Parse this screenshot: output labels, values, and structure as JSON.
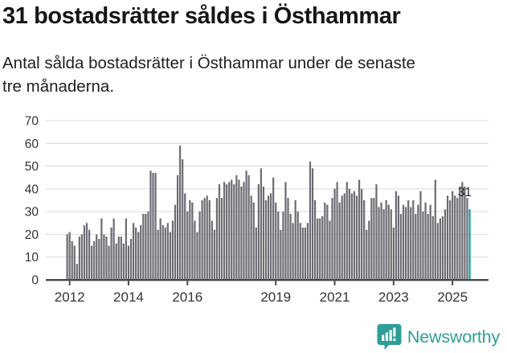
{
  "header": {
    "title": "31 bostadsrätter såldes i Östhammar",
    "subtitle_lines": [
      "Antal sålda bostadsrätter i Östhammar under de senaste",
      "tre månaderna."
    ]
  },
  "chart_data": {
    "type": "bar",
    "title": "31 bostadsrätter såldes i Östhammar",
    "subtitle": "Antal sålda bostadsrätter i Östhammar under de senaste tre månaderna.",
    "frequency": "monthly",
    "x_start": "2011-12",
    "x_end": "2025-08",
    "ylim": [
      0,
      70
    ],
    "yticks": [
      0,
      10,
      20,
      30,
      40,
      50,
      60,
      70
    ],
    "grid": true,
    "xticks": [
      {
        "label": "2012",
        "month_index": 1
      },
      {
        "label": "2014",
        "month_index": 25
      },
      {
        "label": "2016",
        "month_index": 49
      },
      {
        "label": "2019",
        "month_index": 85
      },
      {
        "label": "2021",
        "month_index": 109
      },
      {
        "label": "2023",
        "month_index": 133
      },
      {
        "label": "2025",
        "month_index": 157
      }
    ],
    "values": [
      20,
      21,
      17,
      15,
      7,
      19,
      20,
      24,
      25,
      22,
      15,
      17,
      20,
      18,
      27,
      20,
      19,
      15,
      23,
      27,
      16,
      19,
      19,
      16,
      27,
      15,
      18,
      25,
      23,
      21,
      24,
      29,
      29,
      30,
      48,
      47,
      47,
      22,
      27,
      24,
      23,
      25,
      21,
      26,
      33,
      46,
      59,
      53,
      38,
      30,
      35,
      34,
      26,
      21,
      30,
      35,
      36,
      37,
      35,
      26,
      22,
      36,
      42,
      36,
      43,
      42,
      43,
      44,
      42,
      46,
      44,
      41,
      43,
      48,
      46,
      37,
      34,
      23,
      42,
      49,
      41,
      35,
      37,
      38,
      45,
      34,
      30,
      22,
      30,
      43,
      36,
      29,
      25,
      35,
      30,
      25,
      23,
      23,
      25,
      52,
      49,
      35,
      27,
      27,
      28,
      34,
      33,
      26,
      36,
      40,
      43,
      34,
      37,
      38,
      43,
      40,
      38,
      39,
      37,
      44,
      40,
      35,
      22,
      26,
      36,
      36,
      42,
      32,
      34,
      31,
      35,
      33,
      31,
      23,
      39,
      37,
      29,
      33,
      32,
      35,
      32,
      35,
      29,
      33,
      39,
      30,
      34,
      29,
      33,
      28,
      44,
      25,
      27,
      28,
      31,
      37,
      35,
      39,
      37,
      36,
      41,
      43,
      41,
      36,
      31
    ],
    "highlight": {
      "index": 164,
      "value": 31,
      "label": "31"
    },
    "colors": {
      "bar": "#6c6b72",
      "highlight": "#0e9c9c",
      "grid": "#e1e1e1",
      "axis": "#4a4a4a",
      "tick_label": "#333333",
      "annotation": "#2b2b2b"
    }
  },
  "footer": {
    "brand": "Newsworthy",
    "logo_color": "#2e9e96"
  }
}
